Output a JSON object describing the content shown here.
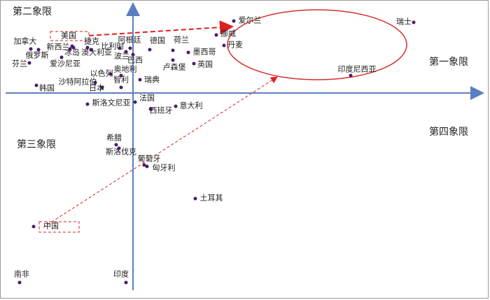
{
  "chart_data": {
    "type": "scatter",
    "xlim": [
      -18,
      50
    ],
    "ylim": [
      -28,
      13
    ],
    "color": "#4b1d6b",
    "labels": [
      "瑞士",
      "爱尔兰",
      "挪威",
      "丹麦",
      "印度尼西亚",
      "德国",
      "荷兰",
      "墨西哥",
      "英国",
      "卢森堡",
      "巴西",
      "波兰",
      "阿根廷",
      "比利时",
      "捷克",
      "冰岛",
      "澳大利亚",
      "美国",
      "新西兰",
      "加拿大",
      "俄罗斯",
      "芬兰",
      "爱沙尼亚",
      "奥地利",
      "以色列",
      "沙特阿拉伯",
      "日本",
      "智利",
      "瑞典",
      "韩国",
      "法国",
      "斯洛文尼亚",
      "西班牙",
      "意大利",
      "希腊",
      "斯洛伐克",
      "葡萄牙",
      "匈牙利",
      "土耳其",
      "中国",
      "南非",
      "印度"
    ],
    "x": [
      40.1,
      14.4,
      11.9,
      13,
      31.1,
      2.4,
      5.7,
      7.9,
      8.7,
      5.7,
      0,
      -1,
      -1.9,
      -0.4,
      -6.5,
      -9,
      -6,
      -8.5,
      -8.7,
      -14.6,
      -13.5,
      -14.8,
      -10.2,
      -1.7,
      -3.2,
      -5.4,
      -4.4,
      -1.7,
      1,
      -13.8,
      0.3,
      -6.5,
      2.5,
      6.1,
      -2.4,
      -2,
      1.6,
      2,
      8.9,
      -14.2,
      -16.2,
      -1
    ],
    "values": [
      10.1,
      10.3,
      8.3,
      6.8,
      2.5,
      6.2,
      6.1,
      5.8,
      4.2,
      4.7,
      5.5,
      5.9,
      6.4,
      6.4,
      6.5,
      6.3,
      6.2,
      6.5,
      6.7,
      6.3,
      6.2,
      4.3,
      5.1,
      2.5,
      2.7,
      1.5,
      0.8,
      0.8,
      1.9,
      1.1,
      -1.3,
      -1.6,
      -2.3,
      -1.9,
      -7.4,
      -7.9,
      -10.3,
      -10.5,
      -15.1,
      -19.1,
      -27.1,
      -27.1
    ],
    "annotations": [
      "第二象限",
      "第一象限",
      "第三象限",
      "第四象限"
    ]
  }
}
